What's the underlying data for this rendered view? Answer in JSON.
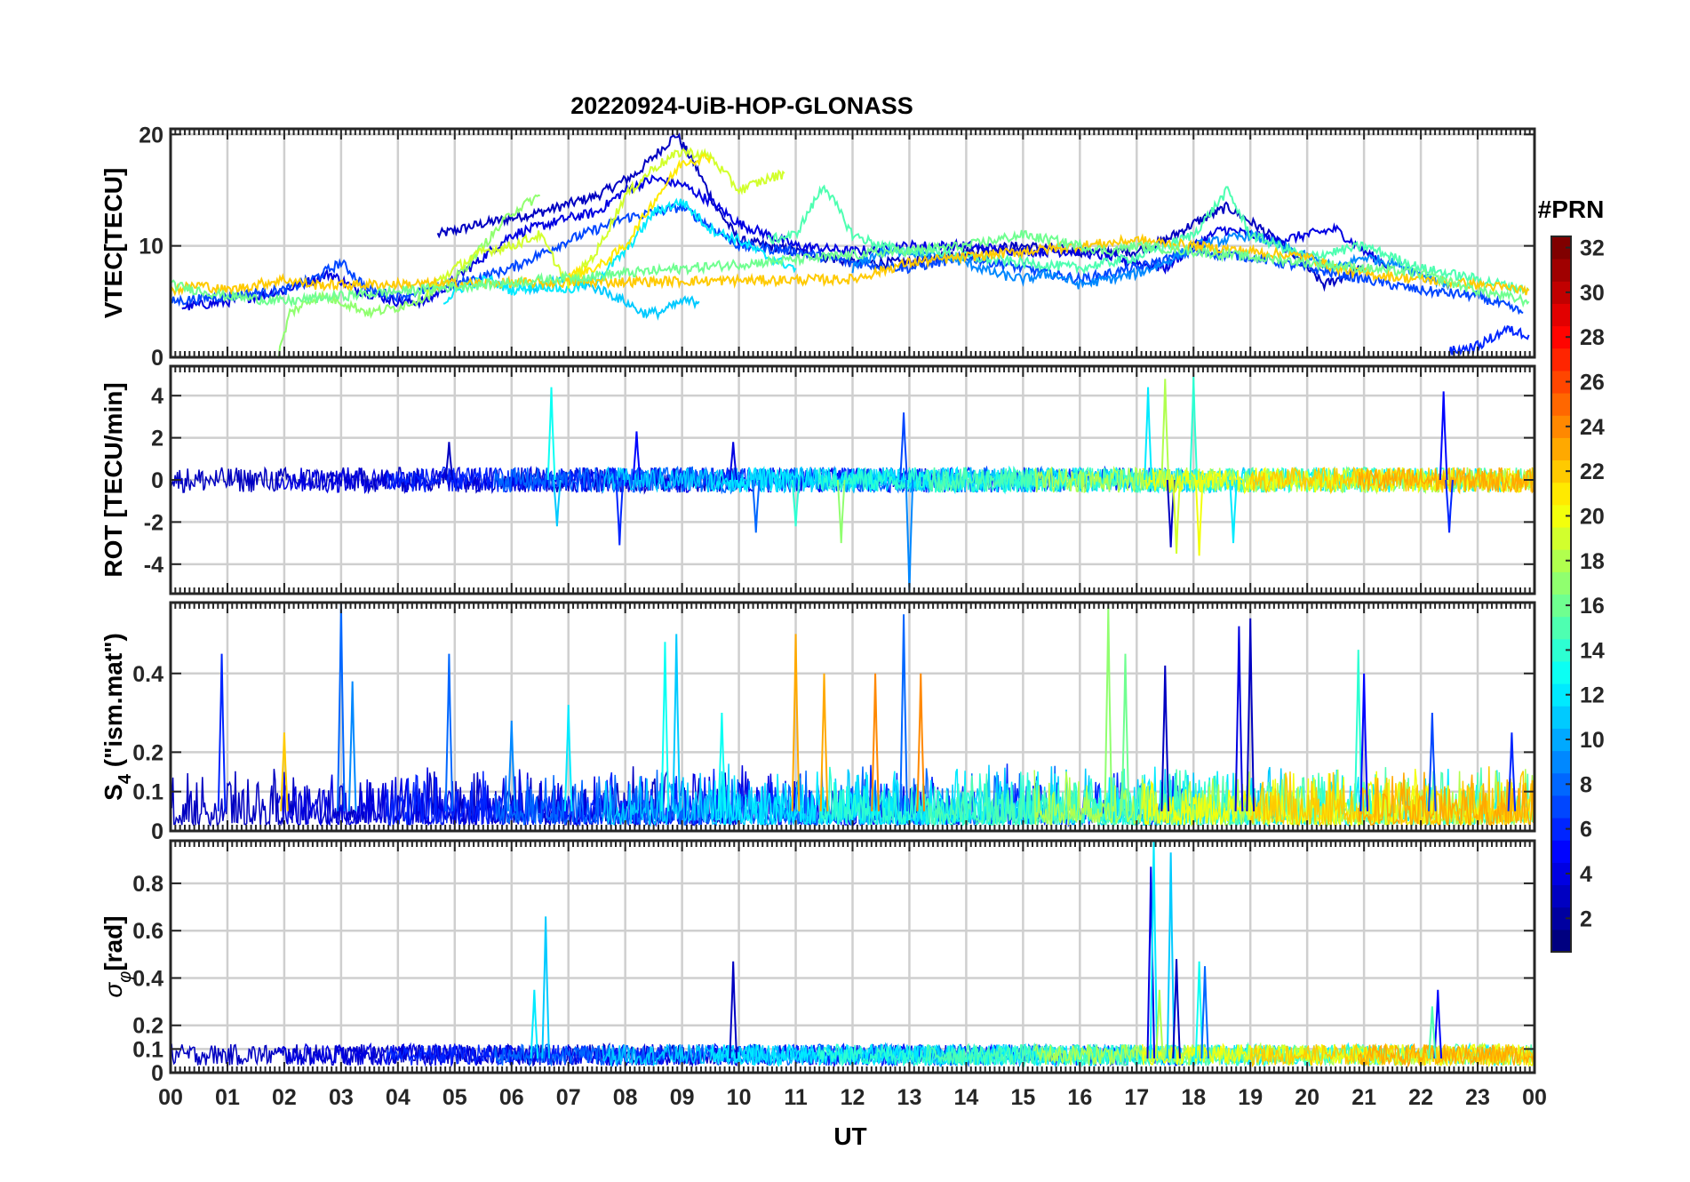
{
  "chart_data": {
    "type": "line",
    "title": "20220924-UiB-HOP-GLONASS",
    "xlabel": "UT",
    "x_ticks": [
      "00",
      "01",
      "02",
      "03",
      "04",
      "05",
      "06",
      "07",
      "08",
      "09",
      "10",
      "11",
      "12",
      "13",
      "14",
      "15",
      "16",
      "17",
      "18",
      "19",
      "20",
      "21",
      "22",
      "23",
      "00"
    ],
    "xlim": [
      0,
      24
    ],
    "grid": true,
    "colorbar": {
      "title": "#PRN",
      "colormap": "jet",
      "range": [
        1,
        32
      ],
      "ticks": [
        "2",
        "4",
        "6",
        "8",
        "10",
        "12",
        "14",
        "16",
        "18",
        "20",
        "22",
        "24",
        "26",
        "28",
        "30",
        "32"
      ]
    },
    "panels": [
      {
        "id": "vtec",
        "ylabel": "VTEC[TECU]",
        "ylim": [
          0,
          20.5
        ],
        "yticks": [
          "0",
          "10",
          "20"
        ],
        "series": [
          {
            "prn": 3,
            "x": [
              4.7,
              5.5,
              6.5,
              7.5,
              8.2,
              8.9,
              9.2,
              9.6,
              10.0,
              11.0,
              12.0,
              13.0,
              14.0,
              15.0,
              16.0,
              17.0,
              17.5,
              18.0,
              18.6,
              19.2,
              19.8,
              20.3,
              21.0
            ],
            "y": [
              11.0,
              12.0,
              13.0,
              14.5,
              16.5,
              20.0,
              17.5,
              13.5,
              10.5,
              9.5,
              8.5,
              8.5,
              9.5,
              10.0,
              9.5,
              9.5,
              10.5,
              12.0,
              13.5,
              11.5,
              9.0,
              6.5,
              8.0
            ]
          },
          {
            "prn": 4,
            "x": [
              0.2,
              1.0,
              2.0,
              2.8,
              3.3,
              4.0,
              4.5,
              5.0,
              6.0,
              7.0,
              7.5,
              8.0,
              8.5,
              9.0,
              9.5,
              10.0,
              10.5,
              11.0,
              12.0,
              13.0,
              14.0,
              15.0,
              16.0,
              17.0,
              17.5,
              18.0,
              18.5,
              19.0,
              19.5,
              20.0,
              20.5,
              21.0,
              21.5
            ],
            "y": [
              4.5,
              5.0,
              6.0,
              7.5,
              6.0,
              5.0,
              5.0,
              7.0,
              11.0,
              12.5,
              13.0,
              15.0,
              16.0,
              15.5,
              14.0,
              12.0,
              11.0,
              10.0,
              9.5,
              10.0,
              10.0,
              9.5,
              9.5,
              8.5,
              8.0,
              10.0,
              11.5,
              11.0,
              10.5,
              11.0,
              11.5,
              9.5,
              8.0
            ]
          },
          {
            "prn": 7,
            "x": [
              0.0,
              1.0,
              2.0,
              2.5,
              3.0,
              3.5,
              4.0,
              5.0,
              6.0,
              7.0,
              8.0,
              9.0,
              10.0,
              11.0,
              12.0,
              13.0,
              14.0,
              15.0,
              16.0,
              17.0,
              18.0,
              19.0,
              20.0,
              21.0,
              22.0,
              23.0,
              23.8
            ],
            "y": [
              5.0,
              5.5,
              6.0,
              7.0,
              8.5,
              6.0,
              5.5,
              6.5,
              8.0,
              10.5,
              12.5,
              13.5,
              10.0,
              9.5,
              8.5,
              8.0,
              9.0,
              8.0,
              7.0,
              8.0,
              9.5,
              9.0,
              8.0,
              7.0,
              6.0,
              5.5,
              4.0
            ]
          },
          {
            "prn": 9,
            "x": [
              12.0,
              12.5,
              13.0,
              13.5,
              14.0,
              14.5,
              15.0,
              15.5,
              16.0,
              16.5,
              17.0,
              17.5,
              18.0,
              18.5,
              19.0,
              19.5,
              20.0,
              20.5,
              21.0,
              21.5,
              22.0,
              22.5
            ],
            "y": [
              8.0,
              9.5,
              9.5,
              9.0,
              8.5,
              7.5,
              7.0,
              7.5,
              6.5,
              7.0,
              7.5,
              8.5,
              10.0,
              10.5,
              11.0,
              10.0,
              9.0,
              8.0,
              9.0,
              8.5,
              7.5,
              6.5
            ]
          },
          {
            "prn": 11,
            "x": [
              6.3,
              6.6,
              7.0,
              7.3,
              7.6,
              8.0,
              8.3,
              8.6,
              9.0,
              9.3
            ],
            "y": [
              6.0,
              6.5,
              7.0,
              6.5,
              6.0,
              5.0,
              4.0,
              4.0,
              5.0,
              5.0
            ]
          },
          {
            "prn": 12,
            "x": [
              4.8,
              5.2,
              5.6,
              6.0,
              6.5,
              7.0,
              7.5,
              8.0,
              8.5,
              9.0,
              9.5,
              10.0,
              10.5,
              11.0
            ],
            "y": [
              5.0,
              6.5,
              7.0,
              6.0,
              6.5,
              6.0,
              7.0,
              9.5,
              13.0,
              14.0,
              11.5,
              10.5,
              9.0,
              8.0
            ]
          },
          {
            "prn": 15,
            "x": [
              10.5,
              11.0,
              11.5,
              12.0,
              12.5,
              13.0,
              13.5,
              14.0,
              15.0,
              16.0,
              17.0,
              18.0,
              18.6,
              19.0,
              20.0,
              21.0,
              22.0,
              23.0,
              23.9
            ],
            "y": [
              10.5,
              11.0,
              15.5,
              11.0,
              10.0,
              9.5,
              9.5,
              9.0,
              8.5,
              8.0,
              9.0,
              11.0,
              15.0,
              11.0,
              9.0,
              10.0,
              8.0,
              7.0,
              6.0
            ]
          },
          {
            "prn": 17,
            "x": [
              1.9,
              2.1,
              2.6,
              3.0,
              3.5,
              4.0,
              4.5,
              5.0,
              5.5,
              6.0,
              6.5
            ],
            "y": [
              0.2,
              4.0,
              5.5,
              5.0,
              4.0,
              4.5,
              5.5,
              7.0,
              10.0,
              13.0,
              14.5
            ]
          },
          {
            "prn": 19,
            "x": [
              4.5,
              5.0,
              5.5,
              6.0,
              6.5,
              7.0,
              7.5,
              8.0,
              8.5,
              9.0,
              9.5,
              10.0,
              10.5,
              10.8
            ],
            "y": [
              6.0,
              8.0,
              9.5,
              10.0,
              11.0,
              6.5,
              9.5,
              14.5,
              17.0,
              18.5,
              18.0,
              15.0,
              16.0,
              16.5
            ]
          },
          {
            "prn": 21,
            "x": [
              7.0,
              7.5,
              8.0,
              8.5,
              9.0,
              9.5
            ],
            "y": [
              7.5,
              8.0,
              10.0,
              14.0,
              17.5,
              18.0
            ]
          },
          {
            "prn": 22,
            "x": [
              0.0,
              0.5,
              1.0,
              1.5,
              2.0,
              2.5,
              3.0,
              12.0,
              13.0,
              14.0,
              15.0,
              16.0,
              17.0,
              18.0,
              19.0,
              20.0,
              20.5,
              21.0,
              22.0,
              23.0,
              23.9
            ],
            "y": [
              6.0,
              6.5,
              6.0,
              6.5,
              7.0,
              6.5,
              6.5,
              7.0,
              8.5,
              9.0,
              9.5,
              10.0,
              10.5,
              10.0,
              9.5,
              9.0,
              8.0,
              7.5,
              7.0,
              6.5,
              6.0
            ]
          },
          {
            "prn": 16,
            "x": [
              0.0,
              1.0,
              2.0,
              3.0,
              14.0,
              15.0,
              15.5,
              16.0,
              16.5,
              17.0,
              18.0,
              19.0,
              20.0,
              21.0,
              22.0,
              23.0,
              23.9
            ],
            "y": [
              6.5,
              5.5,
              5.0,
              5.5,
              10.0,
              11.0,
              10.5,
              10.0,
              9.5,
              10.0,
              9.5,
              9.0,
              8.5,
              8.0,
              7.5,
              6.0,
              5.0
            ]
          },
          {
            "prn": 6,
            "x": [
              22.5,
              23.0,
              23.5,
              23.9
            ],
            "y": [
              0.5,
              1.0,
              2.5,
              2.0
            ]
          }
        ]
      },
      {
        "id": "rot",
        "ylabel": "ROT [TECU/min]",
        "ylim": [
          -5.4,
          5.4
        ],
        "yticks": [
          "-4",
          "-2",
          "0",
          "2",
          "4"
        ],
        "noise_band": 0.6,
        "spikes": [
          {
            "prn": 13,
            "x": 6.7,
            "y": 4.4
          },
          {
            "prn": 11,
            "x": 6.8,
            "y": -2.2
          },
          {
            "prn": 6,
            "x": 7.9,
            "y": -3.1
          },
          {
            "prn": 5,
            "x": 8.2,
            "y": 2.3
          },
          {
            "prn": 4,
            "x": 9.9,
            "y": 1.8
          },
          {
            "prn": 8,
            "x": 10.3,
            "y": -2.5
          },
          {
            "prn": 7,
            "x": 12.9,
            "y": 3.2
          },
          {
            "prn": 9,
            "x": 13.0,
            "y": -5.4
          },
          {
            "prn": 12,
            "x": 17.2,
            "y": 4.4
          },
          {
            "prn": 18,
            "x": 17.5,
            "y": 4.8
          },
          {
            "prn": 3,
            "x": 17.6,
            "y": -3.2
          },
          {
            "prn": 19,
            "x": 17.7,
            "y": -3.5
          },
          {
            "prn": 14,
            "x": 18.0,
            "y": 4.9
          },
          {
            "prn": 20,
            "x": 18.1,
            "y": -3.6
          },
          {
            "prn": 12,
            "x": 18.7,
            "y": -3.0
          },
          {
            "prn": 5,
            "x": 22.4,
            "y": 4.2
          },
          {
            "prn": 6,
            "x": 22.5,
            "y": -2.5
          },
          {
            "prn": 3,
            "x": 4.9,
            "y": 1.8
          },
          {
            "prn": 14,
            "x": 11.0,
            "y": -2.2
          },
          {
            "prn": 17,
            "x": 11.8,
            "y": -3.0
          }
        ]
      },
      {
        "id": "s4",
        "ylabel": "S4 (\"ism.mat\")",
        "ylabel_main": "S",
        "ylabel_sub": "4",
        "ylabel_rest": "(\"ism.mat\")",
        "ylim": [
          0,
          0.58
        ],
        "yticks": [
          "0",
          "0.1",
          "0.2",
          "0.4"
        ],
        "ytick_values": [
          0,
          0.1,
          0.2,
          0.4
        ],
        "spikes": [
          {
            "prn": 6,
            "x": 0.9,
            "y": 0.45
          },
          {
            "prn": 8,
            "x": 3.0,
            "y": 0.58
          },
          {
            "prn": 9,
            "x": 3.2,
            "y": 0.38
          },
          {
            "prn": 8,
            "x": 4.9,
            "y": 0.45
          },
          {
            "prn": 12,
            "x": 7.0,
            "y": 0.32
          },
          {
            "prn": 13,
            "x": 8.7,
            "y": 0.48
          },
          {
            "prn": 11,
            "x": 8.9,
            "y": 0.5
          },
          {
            "prn": 23,
            "x": 11.0,
            "y": 0.5
          },
          {
            "prn": 23,
            "x": 11.5,
            "y": 0.4
          },
          {
            "prn": 24,
            "x": 12.4,
            "y": 0.4
          },
          {
            "prn": 8,
            "x": 12.9,
            "y": 0.55
          },
          {
            "prn": 24,
            "x": 13.2,
            "y": 0.4
          },
          {
            "prn": 17,
            "x": 16.5,
            "y": 0.57
          },
          {
            "prn": 16,
            "x": 16.8,
            "y": 0.45
          },
          {
            "prn": 3,
            "x": 17.5,
            "y": 0.42
          },
          {
            "prn": 4,
            "x": 18.8,
            "y": 0.52
          },
          {
            "prn": 3,
            "x": 19.0,
            "y": 0.54
          },
          {
            "prn": 14,
            "x": 20.9,
            "y": 0.46
          },
          {
            "prn": 5,
            "x": 21.0,
            "y": 0.4
          },
          {
            "prn": 7,
            "x": 22.2,
            "y": 0.3
          },
          {
            "prn": 6,
            "x": 23.6,
            "y": 0.25
          },
          {
            "prn": 22,
            "x": 2.0,
            "y": 0.25
          },
          {
            "prn": 9,
            "x": 6.0,
            "y": 0.28
          },
          {
            "prn": 13,
            "x": 9.7,
            "y": 0.3
          }
        ]
      },
      {
        "id": "sigma_phi",
        "ylabel": "σφ[rad]",
        "ylabel_main": "σ",
        "ylabel_sub": "φ",
        "ylabel_rest": "[rad]",
        "ylim": [
          0,
          0.98
        ],
        "yticks": [
          "0",
          "0.1",
          "0.2",
          "0.4",
          "0.6",
          "0.8"
        ],
        "ytick_values": [
          0,
          0.1,
          0.2,
          0.4,
          0.6,
          0.8
        ],
        "spikes": [
          {
            "prn": 12,
            "x": 6.4,
            "y": 0.35
          },
          {
            "prn": 11,
            "x": 6.6,
            "y": 0.66
          },
          {
            "prn": 3,
            "x": 9.9,
            "y": 0.47
          },
          {
            "prn": 4,
            "x": 17.25,
            "y": 0.87
          },
          {
            "prn": 12,
            "x": 17.3,
            "y": 0.98
          },
          {
            "prn": 11,
            "x": 17.6,
            "y": 0.93
          },
          {
            "prn": 18,
            "x": 17.4,
            "y": 0.35
          },
          {
            "prn": 3,
            "x": 17.7,
            "y": 0.48
          },
          {
            "prn": 13,
            "x": 18.1,
            "y": 0.47
          },
          {
            "prn": 8,
            "x": 18.2,
            "y": 0.45
          },
          {
            "prn": 5,
            "x": 22.3,
            "y": 0.35
          },
          {
            "prn": 15,
            "x": 22.2,
            "y": 0.28
          }
        ]
      }
    ]
  }
}
